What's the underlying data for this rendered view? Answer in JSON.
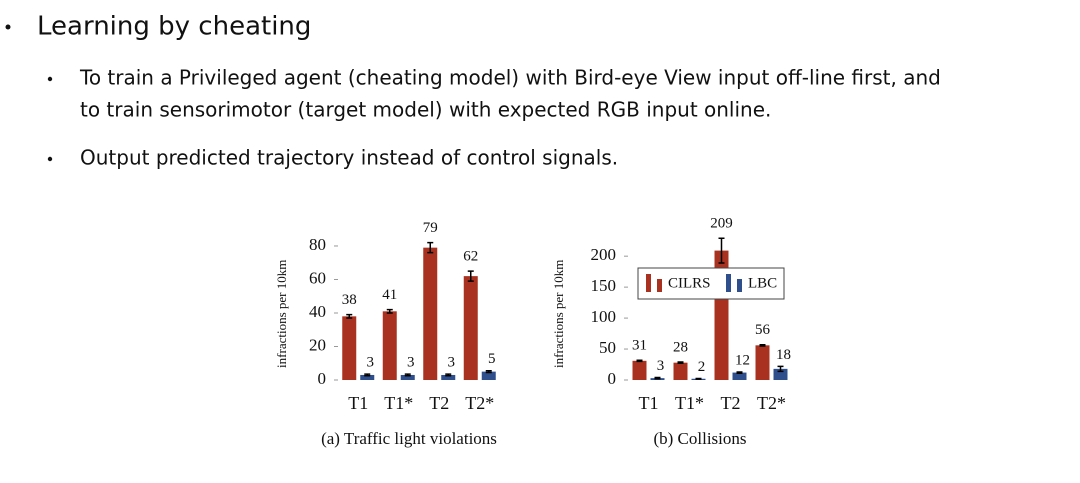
{
  "slide": {
    "heading": "Learning by cheating",
    "bullets": [
      "To train a Privileged agent (cheating model) with Bird-eye View input off-line first, and",
      "to train sensorimotor (target model) with expected RGB input online.",
      "Output predicted trajectory instead of control signals."
    ]
  },
  "chart_data": [
    {
      "type": "bar",
      "title": "(a) Traffic light violations",
      "y_label": "infractions per 10km",
      "categories": [
        "T1",
        "T1*",
        "T2",
        "T2*"
      ],
      "series": [
        {
          "name": "CILRS",
          "color": "#a8321f",
          "values": [
            38,
            41,
            79,
            62
          ],
          "errors": [
            1,
            1,
            3,
            3
          ]
        },
        {
          "name": "LBC",
          "color": "#2f4f8c",
          "values": [
            3,
            3,
            3,
            5
          ],
          "errors": [
            0.5,
            0.5,
            0.5,
            0.5
          ]
        }
      ],
      "ylim": [
        0,
        85
      ],
      "yticks": [
        0,
        20,
        40,
        60,
        80
      ]
    },
    {
      "type": "bar",
      "title": "(b) Collisions",
      "y_label": "infractions per 10km",
      "categories": [
        "T1",
        "T1*",
        "T2",
        "T2*"
      ],
      "series": [
        {
          "name": "CILRS",
          "color": "#a8321f",
          "values": [
            31,
            28,
            209,
            56
          ],
          "errors": [
            1,
            1,
            20,
            1
          ]
        },
        {
          "name": "LBC",
          "color": "#2f4f8c",
          "values": [
            3,
            2,
            12,
            18
          ],
          "errors": [
            1,
            0.5,
            1,
            4
          ]
        }
      ],
      "ylim": [
        0,
        230
      ],
      "yticks": [
        0,
        50,
        100,
        150,
        200
      ],
      "legend": "upper right"
    }
  ]
}
